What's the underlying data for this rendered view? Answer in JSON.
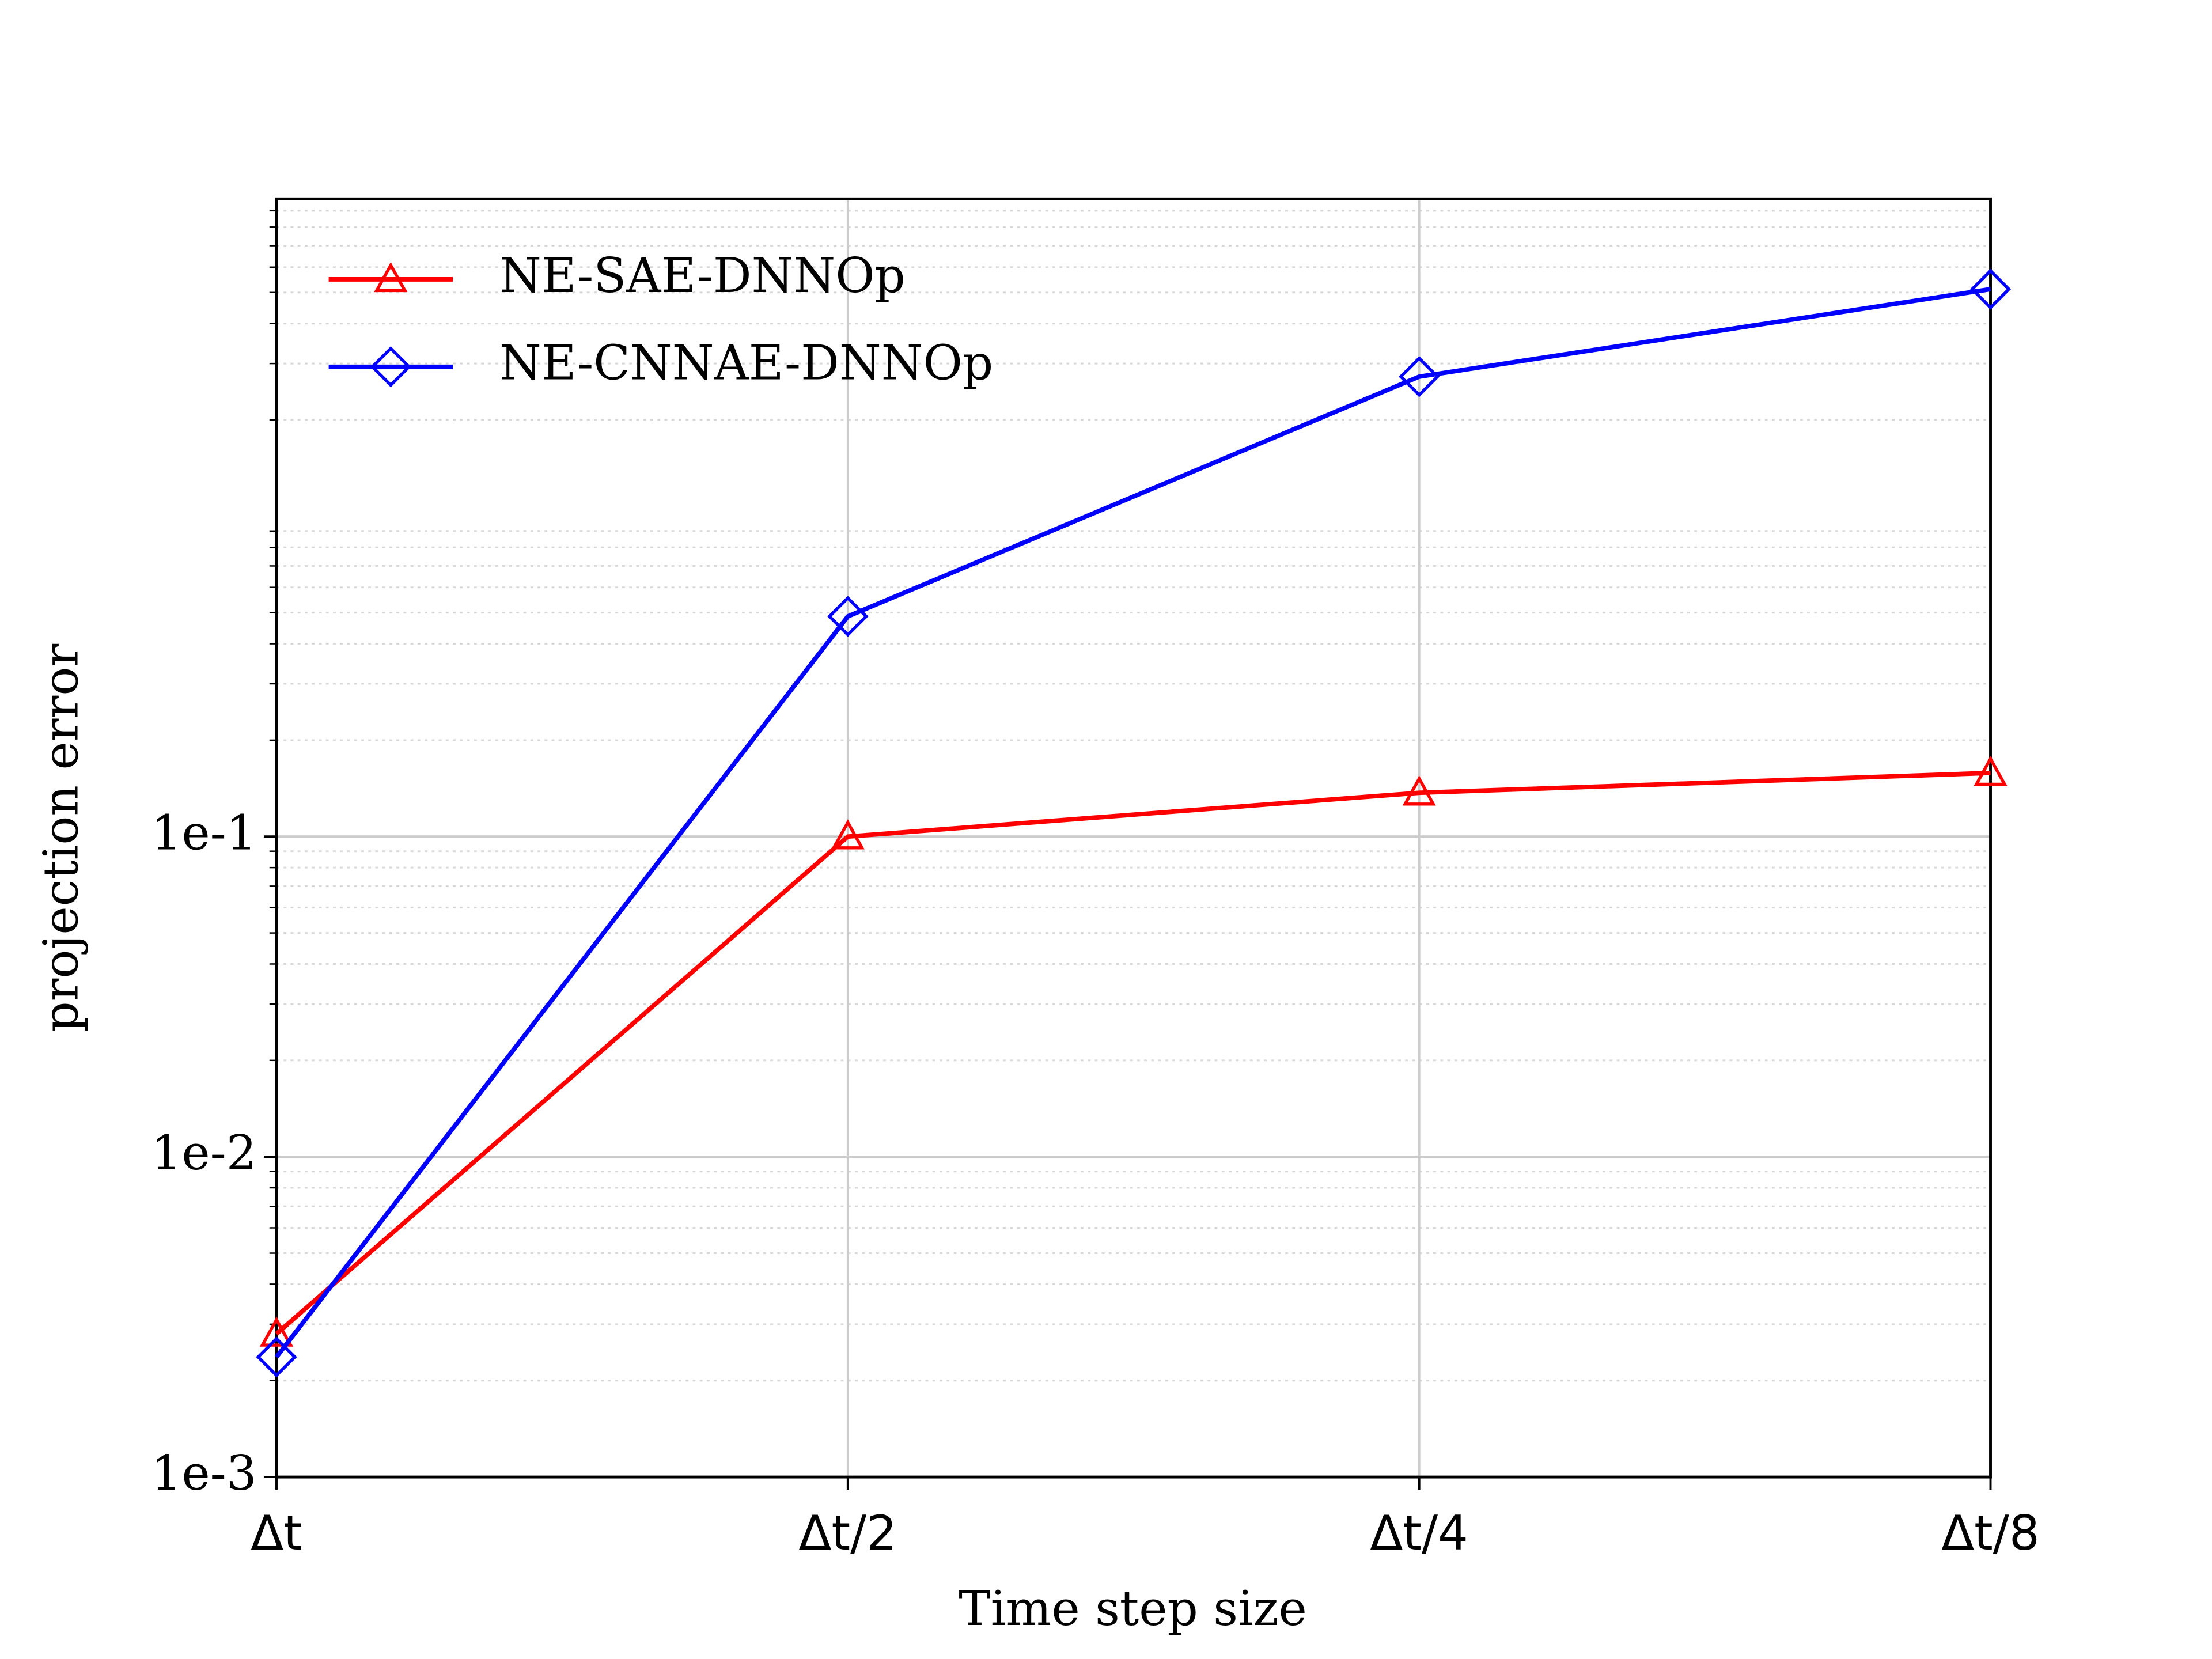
{
  "chart_data": {
    "type": "line",
    "xlabel": "Time step size",
    "ylabel": "projection error",
    "categories": [
      "Δt",
      "Δt/2",
      "Δt/4",
      "Δt/8"
    ],
    "series": [
      {
        "name": "NE-SAE-DNNOp",
        "color": "#ff0000",
        "marker": "triangle",
        "values": [
          0.0028,
          0.1,
          0.137,
          0.158
        ]
      },
      {
        "name": "NE-CNNAE-DNNOp",
        "color": "#0000ff",
        "marker": "diamond",
        "values": [
          0.00237,
          0.487,
          2.73,
          5.12
        ]
      }
    ],
    "ylim": [
      0.001,
      9.8
    ],
    "yticks": [
      {
        "value": 0.001,
        "label": "1e-3"
      },
      {
        "value": 0.01,
        "label": "1e-2"
      },
      {
        "value": 0.1,
        "label": "1e-1"
      }
    ],
    "yscale": "log",
    "grid": true,
    "legend": "upper left"
  }
}
